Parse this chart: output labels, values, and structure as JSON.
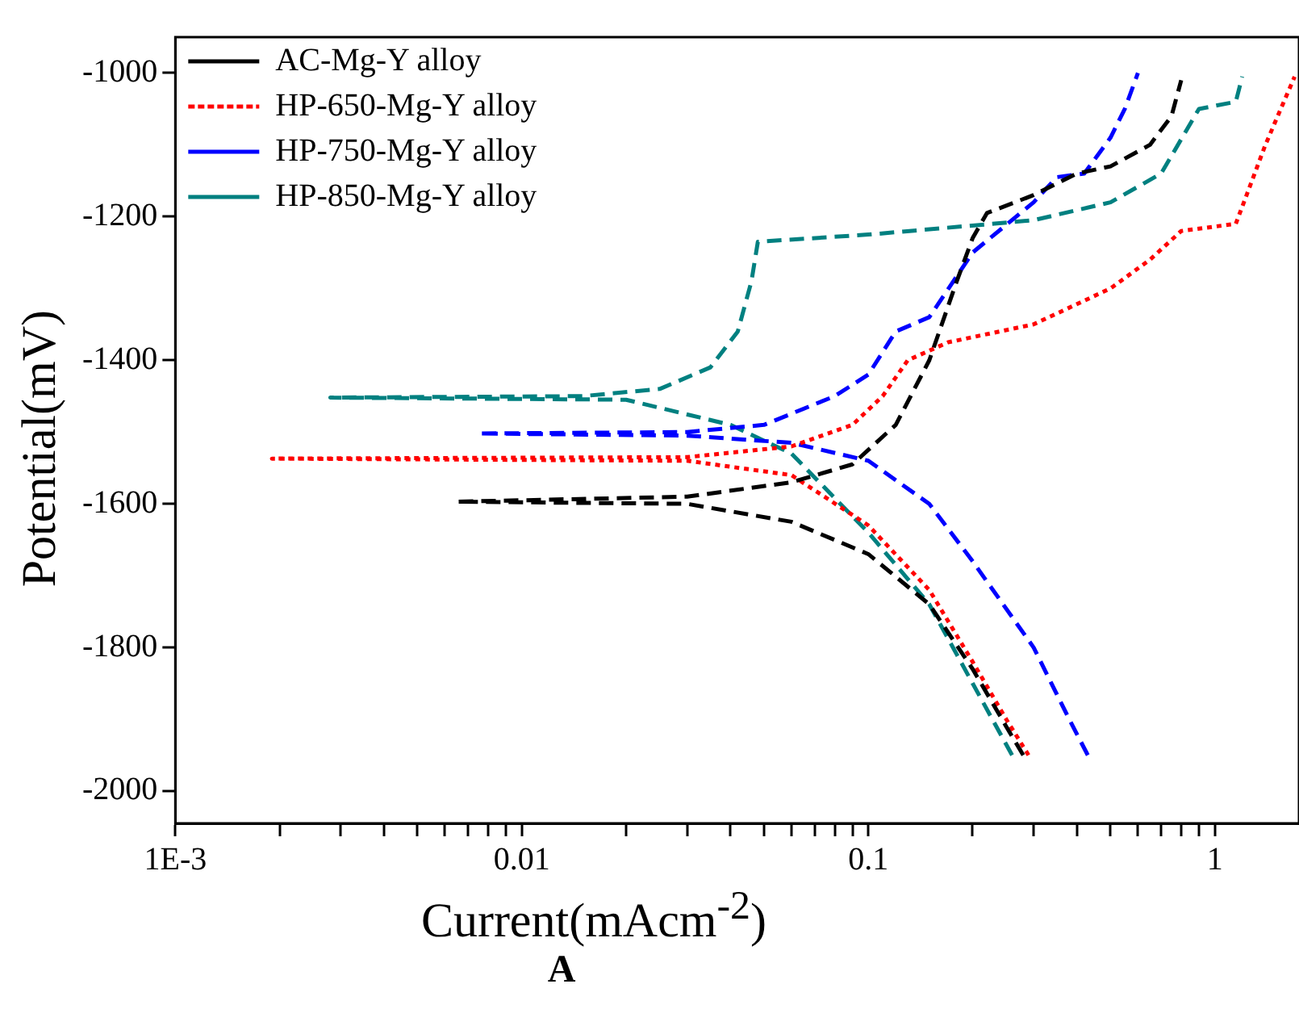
{
  "chart_data": {
    "type": "line",
    "xlabel": "Current(mAcm$^{-2}$)",
    "ylabel": "Potential(mV)",
    "annotations": [
      "A"
    ],
    "log": "x",
    "xlim": [
      0.001,
      1.75
    ],
    "ylim": [
      -2045,
      -950
    ],
    "xticks": [
      {
        "value": 0.001,
        "label": "1E-3"
      },
      {
        "value": 0.002,
        "label": null
      },
      {
        "value": 0.003,
        "label": null
      },
      {
        "value": 0.004,
        "label": null
      },
      {
        "value": 0.005,
        "label": null
      },
      {
        "value": 0.006,
        "label": null
      },
      {
        "value": 0.007,
        "label": null
      },
      {
        "value": 0.008,
        "label": null
      },
      {
        "value": 0.009,
        "label": null
      },
      0.01,
      {
        "value": 0.02,
        "label": null
      },
      {
        "value": 0.03,
        "label": null
      },
      {
        "value": 0.04,
        "label": null
      },
      {
        "value": 0.05,
        "label": null
      },
      {
        "value": 0.06,
        "label": null
      },
      {
        "value": 0.07,
        "label": null
      },
      {
        "value": 0.08,
        "label": null
      },
      {
        "value": 0.09,
        "label": null
      },
      0.1,
      {
        "value": 0.2,
        "label": null
      },
      {
        "value": 0.3,
        "label": null
      },
      {
        "value": 0.4,
        "label": null
      },
      {
        "value": 0.5,
        "label": null
      },
      {
        "value": 0.6,
        "label": null
      },
      {
        "value": 0.7,
        "label": null
      },
      {
        "value": 0.8,
        "label": null
      },
      {
        "value": 0.9,
        "label": null
      },
      1
    ],
    "yticks": [
      -2000,
      -1800,
      -1600,
      -1400,
      -1200,
      -1000
    ],
    "grid": false,
    "legend": "top left",
    "marker": "none",
    "series": [
      {
        "name": "AC-Mg-Y alloy",
        "color": "#000000",
        "line_style": "dashed",
        "x": [
          0.28,
          0.25,
          0.2,
          0.15,
          0.1,
          0.06,
          0.03,
          0.0065,
          0.03,
          0.06,
          0.09,
          0.12,
          0.15,
          0.18,
          0.2,
          0.22,
          0.3,
          0.4,
          0.5,
          0.65,
          0.75,
          0.8
        ],
        "values": [
          -1950,
          -1910,
          -1830,
          -1740,
          -1670,
          -1625,
          -1600,
          -1597,
          -1590,
          -1570,
          -1545,
          -1490,
          -1400,
          -1290,
          -1230,
          -1195,
          -1170,
          -1140,
          -1130,
          -1100,
          -1060,
          -1010
        ]
      },
      {
        "name": "HP-650-Mg-Y alloy",
        "color": "#ff0000",
        "line_style": "dotted",
        "x": [
          0.29,
          0.25,
          0.2,
          0.15,
          0.1,
          0.06,
          0.03,
          0.0019,
          0.03,
          0.06,
          0.09,
          0.11,
          0.13,
          0.17,
          0.3,
          0.5,
          0.65,
          0.8,
          1.15,
          1.4,
          1.7
        ],
        "values": [
          -1950,
          -1900,
          -1820,
          -1720,
          -1630,
          -1560,
          -1540,
          -1537,
          -1535,
          -1520,
          -1490,
          -1450,
          -1400,
          -1375,
          -1350,
          -1300,
          -1260,
          -1220,
          -1210,
          -1100,
          -1005
        ]
      },
      {
        "name": "HP-750-Mg-Y alloy",
        "color": "#0000ff",
        "line_style": "dashed",
        "x": [
          0.43,
          0.38,
          0.3,
          0.2,
          0.15,
          0.1,
          0.06,
          0.03,
          0.0075,
          0.03,
          0.05,
          0.08,
          0.1,
          0.12,
          0.15,
          0.2,
          0.3,
          0.35,
          0.42,
          0.5,
          0.55,
          0.6
        ],
        "values": [
          -1950,
          -1900,
          -1800,
          -1680,
          -1600,
          -1540,
          -1515,
          -1505,
          -1502,
          -1500,
          -1490,
          -1450,
          -1420,
          -1360,
          -1340,
          -1250,
          -1180,
          -1145,
          -1140,
          -1090,
          -1050,
          -1000
        ]
      },
      {
        "name": "HP-850-Mg-Y alloy",
        "color": "#008080",
        "line_style": "dashed",
        "x": [
          0.26,
          0.2,
          0.15,
          0.1,
          0.06,
          0.04,
          0.02,
          0.0028,
          0.015,
          0.025,
          0.035,
          0.042,
          0.046,
          0.048,
          0.1,
          0.3,
          0.5,
          0.7,
          0.9,
          1.15,
          1.2
        ],
        "values": [
          -1950,
          -1850,
          -1740,
          -1640,
          -1530,
          -1490,
          -1455,
          -1452,
          -1450,
          -1440,
          -1410,
          -1360,
          -1290,
          -1235,
          -1225,
          -1205,
          -1180,
          -1140,
          -1050,
          -1040,
          -1005
        ]
      }
    ]
  }
}
